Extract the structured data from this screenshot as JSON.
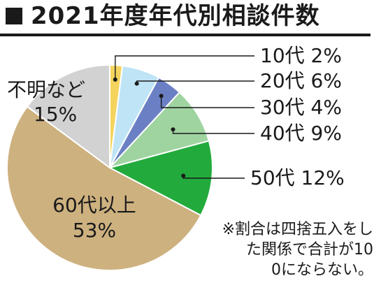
{
  "title": "2021年度年代別相談件数",
  "note": "※割合は四捨五入をした関係で合計が100にならない。",
  "colors": {
    "10代": "#f5d45e",
    "20代": "#bfe4f5",
    "30代": "#6b80c4",
    "40代": "#9fd4a0",
    "50代": "#22ab3c",
    "60代以上": "#cdb17f",
    "不明など": "#d2d2d2",
    "stroke": "#ffffff",
    "leader": "#1a1a1a"
  },
  "chart_data": {
    "type": "pie",
    "title": "2021年度年代別相談件数",
    "slices": [
      {
        "label": "10代",
        "value": 2,
        "value_label": "2%"
      },
      {
        "label": "20代",
        "value": 6,
        "value_label": "6%"
      },
      {
        "label": "30代",
        "value": 4,
        "value_label": "4%"
      },
      {
        "label": "40代",
        "value": 9,
        "value_label": "9%"
      },
      {
        "label": "50代",
        "value": 12,
        "value_label": "12%"
      },
      {
        "label": "60代以上",
        "value": 53,
        "value_label": "53%"
      },
      {
        "label": "不明など",
        "value": 15,
        "value_label": "15%"
      }
    ],
    "start": "12 o'clock",
    "direction": "clockwise"
  }
}
